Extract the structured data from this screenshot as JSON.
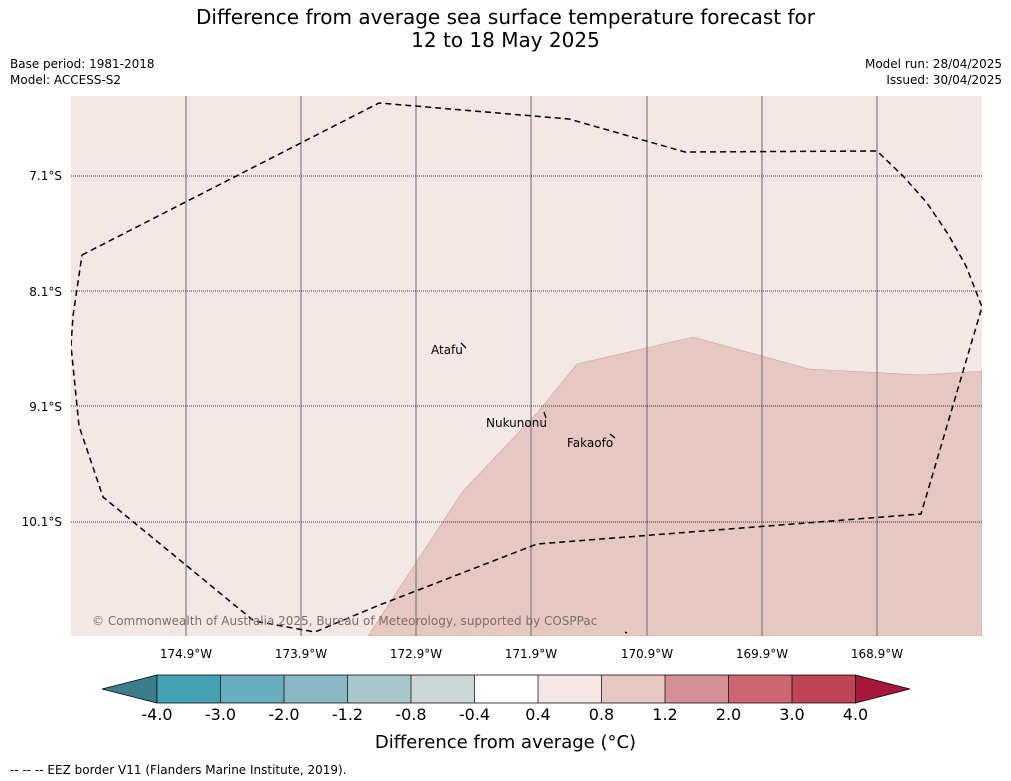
{
  "title": {
    "line1": "Difference from average sea surface temperature forecast for",
    "line2": "12 to 18 May 2025"
  },
  "meta": {
    "base_period": "Base period: 1981-2018",
    "model": "Model: ACCESS-S2",
    "model_run": "Model run: 28/04/2025",
    "issued": "Issued: 30/04/2025"
  },
  "map": {
    "latitude_labels": [
      "7.1°S",
      "8.1°S",
      "9.1°S",
      "10.1°S"
    ],
    "longitude_labels": [
      "174.9°W",
      "173.9°W",
      "172.9°W",
      "171.9°W",
      "170.9°W",
      "169.9°W",
      "168.9°W"
    ],
    "places": [
      "Atafu",
      "Nukunonu",
      "Fakaofo"
    ],
    "copyright": "© Commonwealth of Australia 2025, Bureau of Meteorology, supported by COSPPac",
    "colors": {
      "background_anomaly": "#f4e8e6",
      "warm_anomaly": "#e6c7c2",
      "grid_meridian": "#7f7f7f",
      "eez_border": "#000000"
    }
  },
  "colorbar": {
    "title": "Difference from average (°C)",
    "ticks": [
      "-4.0",
      "-3.0",
      "-2.0",
      "-1.2",
      "-0.8",
      "-0.4",
      "0.4",
      "0.8",
      "1.2",
      "2.0",
      "3.0",
      "4.0"
    ],
    "colors": [
      "#3b7f8c",
      "#44a2b2",
      "#6aadbc",
      "#8bb8c3",
      "#a9c6cb",
      "#ccd6d7",
      "#ffffff",
      "#f3e6e4",
      "#e6c7c2",
      "#d58f96",
      "#cc6670",
      "#bd4555",
      "#a7173a"
    ]
  },
  "footnote": "--  --  -- EEZ border V11 (Flanders Marine Institute, 2019)."
}
